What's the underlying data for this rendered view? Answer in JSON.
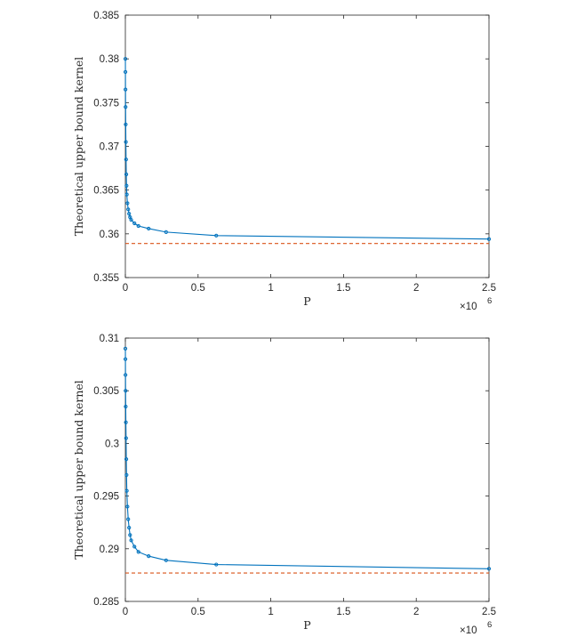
{
  "chart_data": [
    {
      "type": "line",
      "title": "",
      "xlabel": "P",
      "ylabel": "Theoretical upper bound kernel",
      "x_multiplier": {
        "times": "×10",
        "exponent": "6"
      },
      "xlim": [
        0,
        2.5
      ],
      "ylim": [
        0.355,
        0.385
      ],
      "x_ticks": [
        0,
        0.5,
        1,
        1.5,
        2,
        2.5
      ],
      "x_tick_labels": [
        "0",
        "0.5",
        "1",
        "1.5",
        "2",
        "2.5"
      ],
      "y_ticks": [
        0.355,
        0.36,
        0.365,
        0.37,
        0.375,
        0.38,
        0.385
      ],
      "y_tick_labels": [
        "0.355",
        "0.36",
        "0.365",
        "0.37",
        "0.375",
        "0.38",
        "0.385"
      ],
      "grid": false,
      "series": [
        {
          "color": "#0072BD",
          "style": "solid-with-markers",
          "x": [
            0.0001,
            0.0004,
            0.0009,
            0.0016,
            0.0025,
            0.0036,
            0.0049,
            0.0064,
            0.0081,
            0.01,
            0.0144,
            0.0196,
            0.0256,
            0.0324,
            0.04,
            0.0625,
            0.09,
            0.16,
            0.28,
            0.625,
            2.5
          ],
          "y": [
            0.38,
            0.3785,
            0.3765,
            0.3745,
            0.3725,
            0.3705,
            0.3685,
            0.3668,
            0.3655,
            0.3645,
            0.3635,
            0.3628,
            0.3623,
            0.3619,
            0.3616,
            0.3612,
            0.3609,
            0.3606,
            0.3602,
            0.3598,
            0.3594
          ]
        },
        {
          "color": "#D95319",
          "style": "dashed",
          "x": [
            0,
            2.5
          ],
          "y": [
            0.3589,
            0.3589
          ]
        }
      ]
    },
    {
      "type": "line",
      "title": "",
      "xlabel": "P",
      "ylabel": "Theoretical upper bound kernel",
      "x_multiplier": {
        "times": "×10",
        "exponent": "6"
      },
      "xlim": [
        0,
        2.5
      ],
      "ylim": [
        0.285,
        0.31
      ],
      "x_ticks": [
        0,
        0.5,
        1,
        1.5,
        2,
        2.5
      ],
      "x_tick_labels": [
        "0",
        "0.5",
        "1",
        "1.5",
        "2",
        "2.5"
      ],
      "y_ticks": [
        0.285,
        0.29,
        0.295,
        0.3,
        0.305,
        0.31
      ],
      "y_tick_labels": [
        "0.285",
        "0.29",
        "0.295",
        "0.3",
        "0.305",
        "0.31"
      ],
      "grid": false,
      "series": [
        {
          "color": "#0072BD",
          "style": "solid-with-markers",
          "x": [
            0.0001,
            0.0004,
            0.0009,
            0.0016,
            0.0025,
            0.0036,
            0.0049,
            0.0064,
            0.0081,
            0.01,
            0.0144,
            0.0196,
            0.0256,
            0.0324,
            0.04,
            0.0625,
            0.09,
            0.16,
            0.28,
            0.625,
            2.5
          ],
          "y": [
            0.309,
            0.308,
            0.3065,
            0.305,
            0.3035,
            0.302,
            0.3005,
            0.2985,
            0.297,
            0.2955,
            0.294,
            0.2928,
            0.292,
            0.2913,
            0.2908,
            0.2902,
            0.2897,
            0.2893,
            0.2889,
            0.2885,
            0.2881
          ]
        },
        {
          "color": "#D95319",
          "style": "dashed",
          "x": [
            0,
            2.5
          ],
          "y": [
            0.2877,
            0.2877
          ]
        }
      ]
    }
  ]
}
